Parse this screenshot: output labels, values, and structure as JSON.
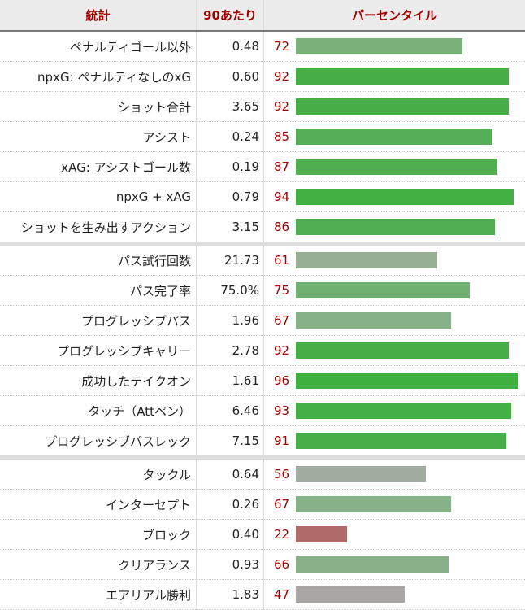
{
  "headers": {
    "stat": "統計",
    "per90": "90あたり",
    "percentile": "パーセンタイル"
  },
  "rows": [
    {
      "stat": "ペナルティゴール以外",
      "per90": "0.48",
      "pct": 72,
      "color": "#7ab07a"
    },
    {
      "stat": "npxG: ペナルティなしのxG",
      "per90": "0.60",
      "pct": 92,
      "color": "#45af45"
    },
    {
      "stat": "ショット合計",
      "per90": "3.65",
      "pct": 92,
      "color": "#45af45"
    },
    {
      "stat": "アシスト",
      "per90": "0.24",
      "pct": 85,
      "color": "#55ae55"
    },
    {
      "stat": "xAG: アシストゴール数",
      "per90": "0.19",
      "pct": 87,
      "color": "#50ae50"
    },
    {
      "stat": "npxG + xAG",
      "per90": "0.79",
      "pct": 94,
      "color": "#42b042"
    },
    {
      "stat": "ショットを生み出すアクション",
      "per90": "3.15",
      "pct": 86,
      "color": "#52ae52"
    },
    {
      "stat": "パス試行回数",
      "per90": "21.73",
      "pct": 61,
      "color": "#96b096",
      "sep": true
    },
    {
      "stat": "パス完了率",
      "per90": "75.0%",
      "pct": 75,
      "color": "#70b070"
    },
    {
      "stat": "プログレッシブパス",
      "per90": "1.96",
      "pct": 67,
      "color": "#86b086"
    },
    {
      "stat": "プログレッシブキャリー",
      "per90": "2.78",
      "pct": 92,
      "color": "#45af45"
    },
    {
      "stat": "成功したテイクオン",
      "per90": "1.61",
      "pct": 96,
      "color": "#3eb03e"
    },
    {
      "stat": "タッチ（Attペン）",
      "per90": "6.46",
      "pct": 93,
      "color": "#44af44"
    },
    {
      "stat": "プログレッシブパスレック",
      "per90": "7.15",
      "pct": 91,
      "color": "#47af47"
    },
    {
      "stat": "タックル",
      "per90": "0.64",
      "pct": 56,
      "color": "#a0aca0",
      "sep": true
    },
    {
      "stat": "インターセプト",
      "per90": "0.26",
      "pct": 67,
      "color": "#86b086"
    },
    {
      "stat": "ブロック",
      "per90": "0.40",
      "pct": 22,
      "color": "#b06a6a"
    },
    {
      "stat": "クリアランス",
      "per90": "0.93",
      "pct": 66,
      "color": "#88b088"
    },
    {
      "stat": "エアリアル勝利",
      "per90": "1.83",
      "pct": 47,
      "color": "#aaa5a5"
    }
  ]
}
